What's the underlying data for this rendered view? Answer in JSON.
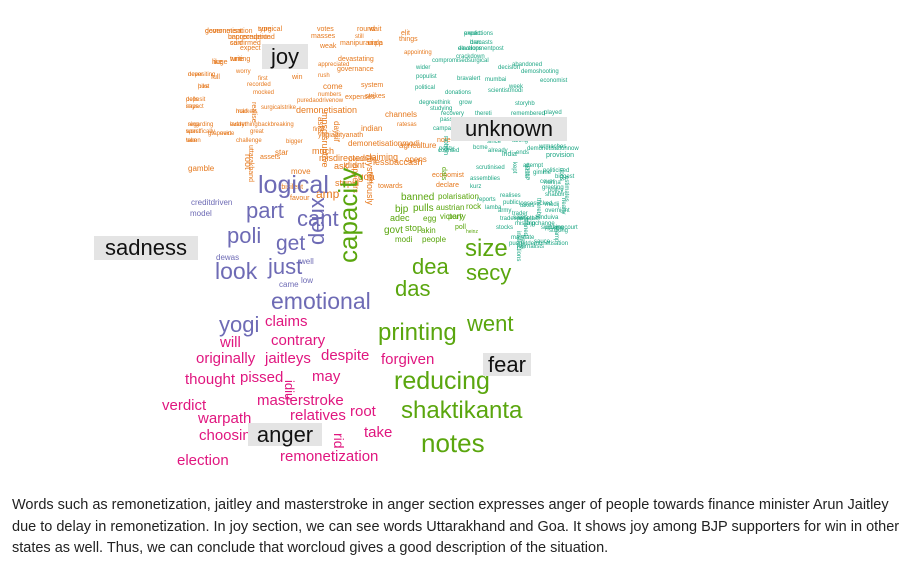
{
  "colors": {
    "joy": "#e6791e",
    "unknown": "#1fa785",
    "sadness": "#6e6bb5",
    "fear": "#5aa60e",
    "anger": "#e0167f",
    "label_bg": "#e4e4e4",
    "label_text": "#111111"
  },
  "labels": {
    "joy": "joy",
    "unknown": "unknown",
    "sadness": "sadness",
    "fear": "fear",
    "anger": "anger"
  },
  "groups": {
    "joy": [
      "government",
      "surgical",
      "unprecedented",
      "said",
      "huge",
      "writing",
      "never",
      "polls",
      "impact",
      "regarding",
      "specifically",
      "taken",
      "hike",
      "markets",
      "everything",
      "grapevine",
      "next",
      "great",
      "challenge",
      "backbreaking",
      "expect",
      "worry",
      "first",
      "recorded",
      "mocked",
      "full",
      "realise",
      "surgicalstrike",
      "demonetisation",
      "mpsdisruptive",
      "daysif",
      "indian",
      "votes",
      "weak",
      "appreciated",
      "devastating",
      "masses",
      "manipurampp",
      "still",
      "round",
      "wait",
      "elit",
      "uiala",
      "things",
      "appointing",
      "win",
      "rush",
      "governance",
      "system",
      "strikes",
      "puredaodrivenow",
      "come",
      "numbers",
      "expenses",
      "final",
      "yogiadityanath",
      "demonetisationmodi",
      "describing",
      "appears",
      "bigger",
      "asks",
      "channels",
      "ratesas",
      "assets",
      "star",
      "much",
      "misdirected",
      "ask",
      "didnt",
      "mysteriously",
      "root",
      "uttarakhand",
      "gamble",
      "stupid",
      "rbisilent",
      "move",
      "goa",
      "amp",
      "favour",
      "claiming",
      "lessbaccash",
      "opens",
      "agriculture",
      "towards",
      "new",
      "declare",
      "economist",
      "note",
      "demonetisation",
      "type",
      "bancorruption",
      "confirmed",
      "like",
      "tune",
      "depositing",
      "deposit",
      "says",
      "sing",
      "worst",
      "won",
      "post",
      "hold",
      "ladder"
    ],
    "unknown": [
      "predictions",
      "brecasts",
      "developmentpost",
      "crackdown",
      "compromisedsurgical",
      "wider",
      "populist",
      "political",
      "degreethink",
      "studying",
      "grow",
      "thereti",
      "remembered",
      "played",
      "storyhb",
      "campaign",
      "policy",
      "since",
      "taking",
      "eminent",
      "bcme",
      "india",
      "provision",
      "kept",
      "attempt",
      "politicised",
      "cover",
      "greeting",
      "donations",
      "mumbai",
      "decision",
      "abandoned",
      "demoshooting",
      "week",
      "bravalert",
      "scientistmodi",
      "economist",
      "recovery",
      "passes",
      "notion",
      "counted",
      "already",
      "wrmaches",
      "ends",
      "demonetisationnow",
      "scrutinised",
      "assemblies",
      "kurz",
      "reports",
      "lamba",
      "realises",
      "public",
      "takes",
      "trader",
      "missing",
      "stocks",
      "basis",
      "mandate",
      "sauce",
      "supremecourt",
      "striking",
      "picking",
      "kashi",
      "bjpchange",
      "cleaned",
      "overnight",
      "modij",
      "shabbir",
      "nanna",
      "thereby",
      "effect",
      "gimme",
      "army",
      "sale",
      "tradespeople",
      "instructions",
      "pudgetdemonetisation",
      "journalists",
      "whether",
      "loosesucked",
      "hinduiva",
      "policy",
      "biggest",
      "nods",
      "nearly",
      "stamp",
      "estimates",
      "discuss",
      "alien",
      "expert",
      "dam",
      "elections"
    ],
    "sadness": [
      "logical",
      "part",
      "cant",
      "poli",
      "get",
      "look",
      "just",
      "emotional",
      "deux",
      "creditdriven",
      "model",
      "dewas",
      "came",
      "well",
      "low",
      "yogi"
    ],
    "fear": [
      "capacity",
      "size",
      "dea",
      "secy",
      "das",
      "printing",
      "went",
      "reducing",
      "shaktikanta",
      "notes",
      "bjp",
      "pulls",
      "banned",
      "polarisation",
      "austrian",
      "rock",
      "egg",
      "victory",
      "party",
      "adec",
      "govt",
      "stop",
      "akin",
      "poll",
      "modi",
      "people",
      "heinz",
      "dats"
    ],
    "anger": [
      "claims",
      "will",
      "contrary",
      "originally",
      "jaitleys",
      "despite",
      "forgiven",
      "thought",
      "pissed",
      "may",
      "idiu",
      "verdict",
      "masterstroke",
      "warpath",
      "relatives",
      "root",
      "choosing",
      "rid",
      "take",
      "election",
      "remonetization"
    ]
  },
  "caption": "Words such as remonetization, jaitley and masterstroke in anger section expresses anger of people towards finance minister Arun Jaitley due to delay in remonetization. In joy section, we can see words Uttarakhand and Goa. It shows joy among BJP supporters for win in other states as well. Thus, we can conclude that worcloud gives a good description of the situation."
}
